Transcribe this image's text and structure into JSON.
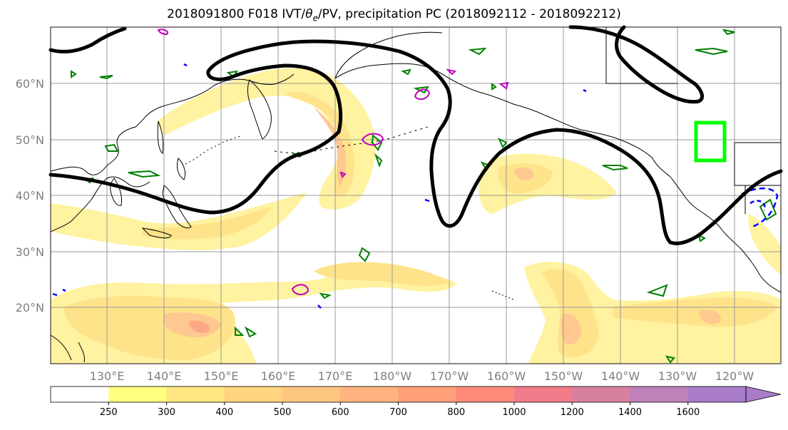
{
  "title_parts": {
    "prefix": "2018091800 F018 IVT/",
    "theta": "θ",
    "theta_sub": "e",
    "suffix": "/PV, precipitation PC (2018092112 - 2018092212)"
  },
  "map": {
    "lon_labels": [
      "130°E",
      "140°E",
      "150°E",
      "160°E",
      "170°E",
      "180°W",
      "170°W",
      "160°W",
      "150°W",
      "140°W",
      "130°W",
      "120°W"
    ],
    "lat_labels": [
      "20°N",
      "30°N",
      "40°N",
      "50°N",
      "60°N"
    ],
    "highlight_box_color": "#00ff00",
    "contour_colors": {
      "pv": "#000000",
      "theta_e": "#008000",
      "precip_pos": "#c000c0",
      "precip_neg": "#0000ff"
    }
  },
  "colorbar": {
    "levels": [
      "250",
      "300",
      "400",
      "500",
      "600",
      "700",
      "800",
      "1000",
      "1200",
      "1400",
      "1600"
    ],
    "colors": [
      "#ffffff",
      "#ffff80",
      "#ffe680",
      "#ffd580",
      "#ffc680",
      "#ffb480",
      "#ffa07a",
      "#ff8a7a",
      "#f07c8a",
      "#d880a0",
      "#c080b8",
      "#a87cc8"
    ]
  }
}
